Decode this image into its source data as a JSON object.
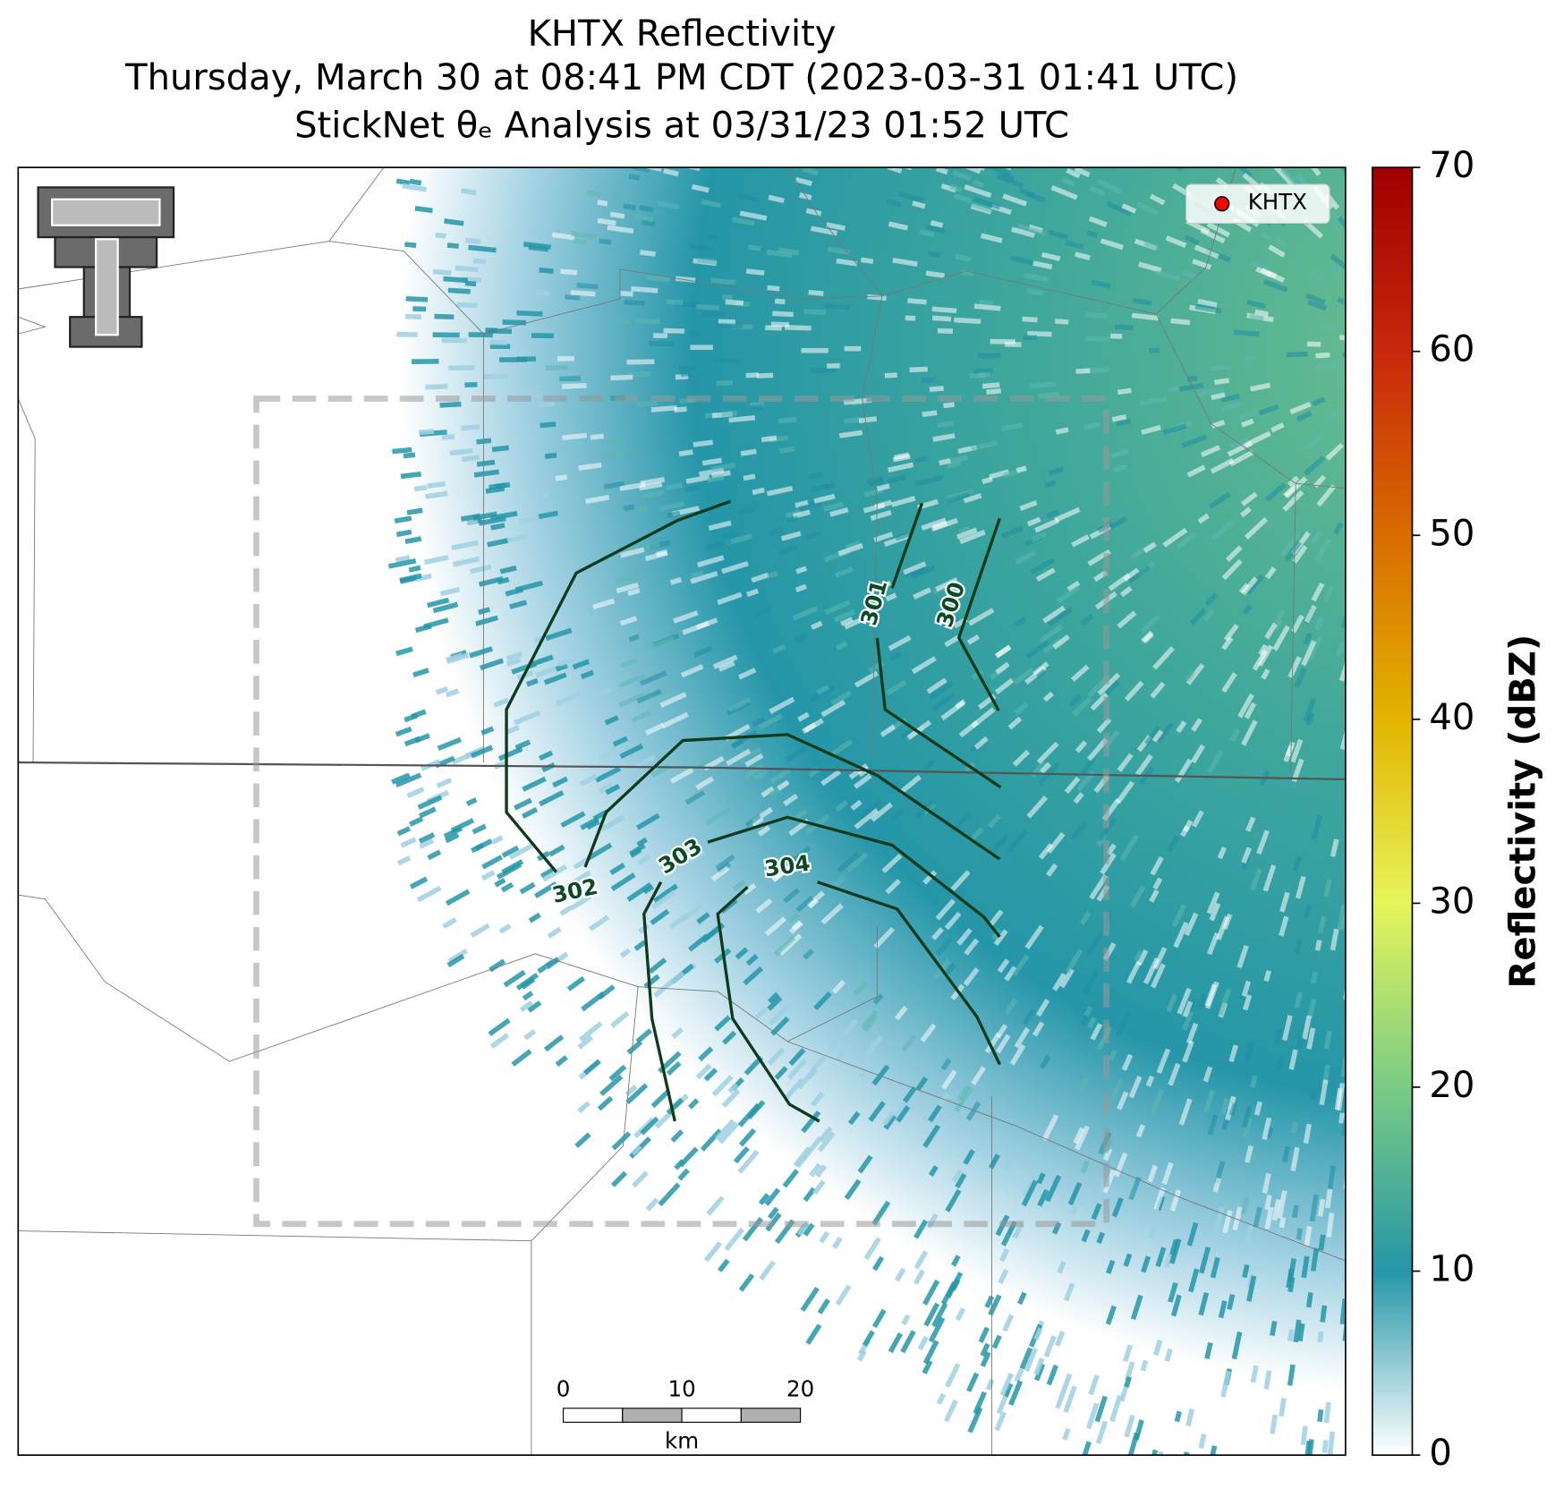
{
  "title": [
    "KHTX Reflectivity",
    "Thursday, March 30 at 08:41 PM CDT (2023-03-31 01:41 UTC)",
    "StickNet θₑ Analysis at 03/31/23 01:52 UTC"
  ],
  "colorbar": {
    "label": "Reflectivity (dBZ)",
    "lim": [
      0,
      70
    ],
    "ticks": [
      0,
      10,
      20,
      30,
      40,
      50,
      60,
      70
    ]
  },
  "legend": {
    "label": "KHTX",
    "color": "#ff0000"
  },
  "contours": [
    {
      "label": 300
    },
    {
      "label": 301
    },
    {
      "label": 302
    },
    {
      "label": 303
    },
    {
      "label": 304
    }
  ],
  "contour_color": "#0f3a1c",
  "scale_bar": {
    "ticks": [
      0,
      10,
      20
    ],
    "unit": "km"
  }
}
